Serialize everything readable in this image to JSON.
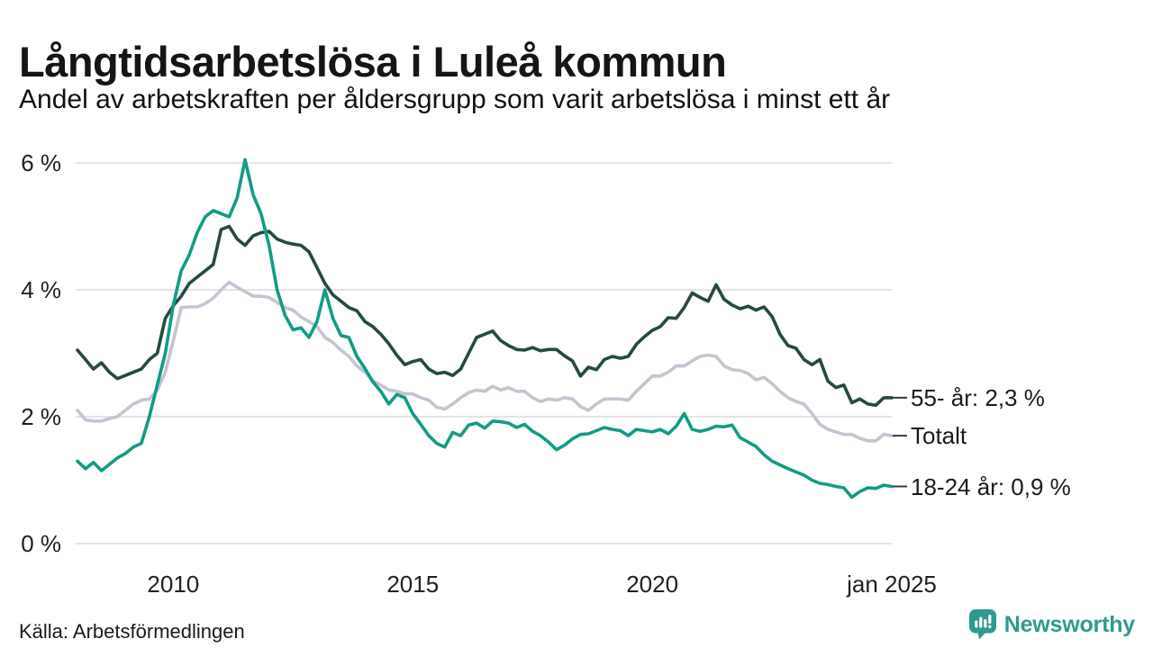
{
  "title": "Långtidsarbetslösa i Luleå kommun",
  "subtitle": "Andel av arbetskraften per åldersgrupp som varit arbetslösa i minst ett år",
  "source": "Källa: Arbetsförmedlingen",
  "branding": {
    "name": "Newsworthy",
    "color": "#2e9a8e"
  },
  "colors": {
    "background": "#ffffff",
    "grid": "#e4e3e9",
    "text": "#1a1a1a",
    "tick_dash": "#3c3c3c"
  },
  "chart_data": {
    "type": "line",
    "title": "Långtidsarbetslösa i Luleå kommun",
    "subtitle": "Andel av arbetskraften per åldersgrupp som varit arbetslösa i minst ett år",
    "unit": "% av arbetskraften",
    "x_range": [
      2008.0,
      2025.0
    ],
    "x_start": 2008.0,
    "x_step": 0.1666667,
    "x_ticks": [
      "2010",
      "2015",
      "2020",
      "jan 2025"
    ],
    "x_tick_years": [
      2010,
      2015,
      2020,
      2025
    ],
    "y_ticks": [
      "6 %",
      "4 %",
      "2 %",
      "0 %"
    ],
    "y_tick_values": [
      6,
      4,
      2,
      0
    ],
    "ylim": [
      0,
      6
    ],
    "grid": true,
    "legend_position": "right-end-of-lines",
    "series": [
      {
        "id": "55-ar",
        "name": "55- år",
        "label": "55- år: 2,3 %",
        "end_value": "2,3 %",
        "color": "#254a40",
        "values": [
          3.05,
          2.9,
          2.75,
          2.85,
          2.7,
          2.6,
          2.65,
          2.7,
          2.75,
          2.9,
          3.0,
          3.55,
          3.75,
          3.9,
          4.1,
          4.2,
          4.3,
          4.4,
          4.95,
          5.0,
          4.8,
          4.7,
          4.85,
          4.9,
          4.92,
          4.8,
          4.75,
          4.72,
          4.7,
          4.6,
          4.35,
          4.1,
          3.92,
          3.82,
          3.72,
          3.67,
          3.5,
          3.42,
          3.3,
          3.15,
          2.97,
          2.82,
          2.87,
          2.9,
          2.75,
          2.68,
          2.7,
          2.65,
          2.75,
          3.0,
          3.25,
          3.3,
          3.35,
          3.2,
          3.12,
          3.06,
          3.05,
          3.09,
          3.04,
          3.06,
          3.06,
          2.96,
          2.88,
          2.64,
          2.78,
          2.74,
          2.9,
          2.95,
          2.92,
          2.95,
          3.14,
          3.26,
          3.36,
          3.42,
          3.56,
          3.55,
          3.72,
          3.95,
          3.88,
          3.82,
          4.08,
          3.85,
          3.76,
          3.7,
          3.74,
          3.68,
          3.73,
          3.58,
          3.3,
          3.12,
          3.08,
          2.9,
          2.82,
          2.9,
          2.56,
          2.46,
          2.5,
          2.22,
          2.28,
          2.2,
          2.18,
          2.3,
          2.3
        ]
      },
      {
        "id": "totalt",
        "name": "Totalt",
        "label": "Totalt",
        "end_value": "1,7 %",
        "color": "#c6c4d1",
        "values": [
          2.1,
          1.95,
          1.93,
          1.93,
          1.97,
          2.0,
          2.1,
          2.2,
          2.26,
          2.28,
          2.42,
          2.7,
          3.2,
          3.72,
          3.73,
          3.73,
          3.78,
          3.87,
          4.0,
          4.12,
          4.04,
          3.97,
          3.9,
          3.9,
          3.88,
          3.8,
          3.72,
          3.68,
          3.57,
          3.5,
          3.42,
          3.25,
          3.17,
          3.05,
          2.95,
          2.8,
          2.7,
          2.57,
          2.5,
          2.42,
          2.4,
          2.36,
          2.36,
          2.3,
          2.26,
          2.15,
          2.12,
          2.2,
          2.3,
          2.38,
          2.42,
          2.4,
          2.48,
          2.42,
          2.46,
          2.4,
          2.4,
          2.3,
          2.24,
          2.28,
          2.26,
          2.3,
          2.28,
          2.16,
          2.1,
          2.2,
          2.28,
          2.28,
          2.28,
          2.26,
          2.4,
          2.52,
          2.64,
          2.64,
          2.7,
          2.8,
          2.8,
          2.88,
          2.95,
          2.97,
          2.95,
          2.8,
          2.74,
          2.73,
          2.68,
          2.58,
          2.62,
          2.52,
          2.4,
          2.3,
          2.24,
          2.2,
          2.05,
          1.88,
          1.8,
          1.76,
          1.72,
          1.72,
          1.66,
          1.62,
          1.62,
          1.72,
          1.7
        ]
      },
      {
        "id": "18-24-ar",
        "name": "18-24 år",
        "label": "18-24 år: 0,9 %",
        "end_value": "0,9 %",
        "color": "#129b85",
        "values": [
          1.3,
          1.18,
          1.28,
          1.15,
          1.25,
          1.35,
          1.42,
          1.52,
          1.58,
          2.0,
          2.5,
          3.0,
          3.76,
          4.3,
          4.55,
          4.9,
          5.15,
          5.25,
          5.2,
          5.15,
          5.45,
          6.05,
          5.5,
          5.2,
          4.7,
          4.0,
          3.6,
          3.37,
          3.4,
          3.25,
          3.5,
          4.0,
          3.55,
          3.28,
          3.25,
          2.95,
          2.76,
          2.55,
          2.4,
          2.2,
          2.35,
          2.3,
          2.05,
          1.88,
          1.7,
          1.58,
          1.52,
          1.75,
          1.7,
          1.87,
          1.9,
          1.82,
          1.93,
          1.92,
          1.9,
          1.83,
          1.88,
          1.77,
          1.7,
          1.6,
          1.48,
          1.55,
          1.65,
          1.72,
          1.73,
          1.78,
          1.83,
          1.8,
          1.78,
          1.7,
          1.8,
          1.78,
          1.76,
          1.8,
          1.73,
          1.85,
          2.05,
          1.8,
          1.77,
          1.8,
          1.85,
          1.84,
          1.87,
          1.67,
          1.6,
          1.53,
          1.4,
          1.3,
          1.24,
          1.18,
          1.13,
          1.08,
          1.0,
          0.95,
          0.93,
          0.9,
          0.88,
          0.73,
          0.82,
          0.88,
          0.87,
          0.92,
          0.9
        ]
      }
    ],
    "draw_order": [
      1,
      0,
      2
    ]
  }
}
